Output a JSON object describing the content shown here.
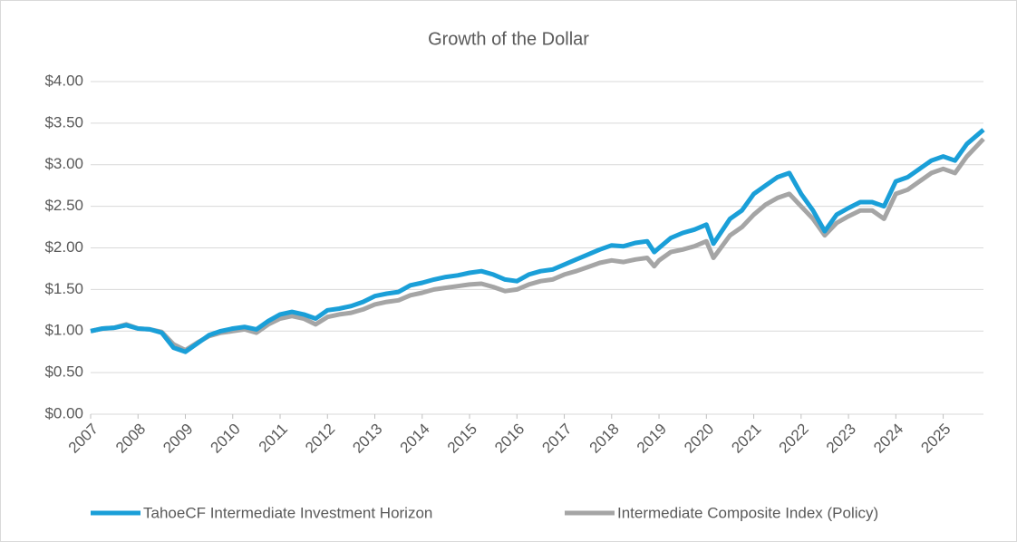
{
  "chart_data": {
    "type": "line",
    "title": "Growth of the Dollar",
    "x": [
      2007,
      2007.25,
      2007.5,
      2007.75,
      2008,
      2008.25,
      2008.5,
      2008.75,
      2009,
      2009.25,
      2009.5,
      2009.75,
      2010,
      2010.25,
      2010.5,
      2010.75,
      2011,
      2011.25,
      2011.5,
      2011.75,
      2012,
      2012.25,
      2012.5,
      2012.75,
      2013,
      2013.25,
      2013.5,
      2013.75,
      2014,
      2014.25,
      2014.5,
      2014.75,
      2015,
      2015.25,
      2015.5,
      2015.75,
      2016,
      2016.25,
      2016.5,
      2016.75,
      2017,
      2017.25,
      2017.5,
      2017.75,
      2018,
      2018.25,
      2018.5,
      2018.75,
      2018.9,
      2019,
      2019.25,
      2019.5,
      2019.75,
      2020,
      2020.15,
      2020.5,
      2020.75,
      2021,
      2021.25,
      2021.5,
      2021.75,
      2022,
      2022.25,
      2022.5,
      2022.75,
      2023,
      2023.25,
      2023.5,
      2023.75,
      2024,
      2024.25,
      2024.5,
      2024.75,
      2025,
      2025.25,
      2025.5,
      2025.85
    ],
    "series": [
      {
        "name": "TahoeCF Intermediate Investment Horizon",
        "color": "#1a9fd8",
        "values": [
          1.0,
          1.03,
          1.04,
          1.07,
          1.03,
          1.02,
          0.98,
          0.8,
          0.75,
          0.85,
          0.95,
          1.0,
          1.03,
          1.05,
          1.02,
          1.12,
          1.2,
          1.23,
          1.2,
          1.15,
          1.25,
          1.27,
          1.3,
          1.35,
          1.42,
          1.45,
          1.47,
          1.55,
          1.58,
          1.62,
          1.65,
          1.67,
          1.7,
          1.72,
          1.68,
          1.62,
          1.6,
          1.68,
          1.72,
          1.74,
          1.8,
          1.86,
          1.92,
          1.98,
          2.03,
          2.02,
          2.06,
          2.08,
          1.95,
          2.0,
          2.12,
          2.18,
          2.22,
          2.28,
          2.05,
          2.35,
          2.45,
          2.65,
          2.75,
          2.85,
          2.9,
          2.65,
          2.45,
          2.2,
          2.4,
          2.48,
          2.55,
          2.55,
          2.5,
          2.8,
          2.85,
          2.95,
          3.05,
          3.1,
          3.05,
          3.25,
          3.42
        ]
      },
      {
        "name": "Intermediate Composite Index (Policy)",
        "color": "#a5a5a5",
        "values": [
          1.0,
          1.03,
          1.04,
          1.08,
          1.03,
          1.02,
          0.99,
          0.84,
          0.77,
          0.86,
          0.94,
          0.98,
          1.0,
          1.02,
          0.98,
          1.08,
          1.15,
          1.18,
          1.15,
          1.08,
          1.17,
          1.2,
          1.22,
          1.26,
          1.32,
          1.35,
          1.37,
          1.43,
          1.46,
          1.5,
          1.52,
          1.54,
          1.56,
          1.57,
          1.53,
          1.48,
          1.5,
          1.56,
          1.6,
          1.62,
          1.68,
          1.72,
          1.77,
          1.82,
          1.85,
          1.83,
          1.86,
          1.88,
          1.78,
          1.85,
          1.95,
          1.98,
          2.02,
          2.08,
          1.88,
          2.15,
          2.25,
          2.4,
          2.52,
          2.6,
          2.65,
          2.5,
          2.35,
          2.15,
          2.3,
          2.38,
          2.45,
          2.45,
          2.35,
          2.65,
          2.7,
          2.8,
          2.9,
          2.95,
          2.9,
          3.1,
          3.31
        ]
      }
    ],
    "xlim": [
      2007,
      2025.85
    ],
    "xticks": [
      2007,
      2008,
      2009,
      2010,
      2011,
      2012,
      2013,
      2014,
      2015,
      2016,
      2017,
      2018,
      2019,
      2020,
      2021,
      2022,
      2023,
      2024,
      2025
    ],
    "ylim": [
      0,
      4
    ],
    "yticks": [
      {
        "value": 0,
        "label": "$0.00"
      },
      {
        "value": 0.5,
        "label": "$0.50"
      },
      {
        "value": 1,
        "label": "$1.00"
      },
      {
        "value": 1.5,
        "label": "$1.50"
      },
      {
        "value": 2,
        "label": "$2.00"
      },
      {
        "value": 2.5,
        "label": "$2.50"
      },
      {
        "value": 3,
        "label": "$3.00"
      },
      {
        "value": 3.5,
        "label": "$3.50"
      },
      {
        "value": 4,
        "label": "$4.00"
      }
    ],
    "grid": true,
    "legend": "bottom"
  }
}
